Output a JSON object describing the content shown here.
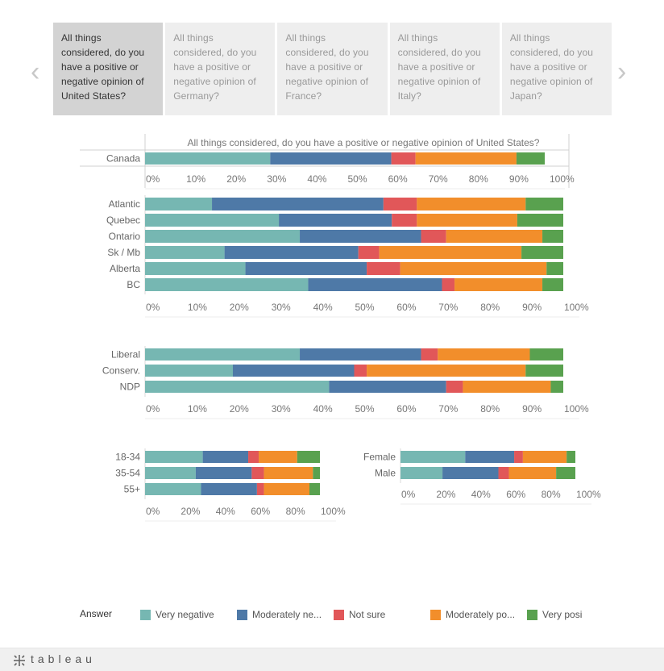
{
  "tabs": [
    "All things considered, do you have a positive or negative opinion of United States?",
    "All things considered, do you have a positive or negative opinion of Germany?",
    "All things considered, do you have a positive or negative opinion of France?",
    "All things considered, do you have a positive or negative opinion of Italy?",
    "All things considered, do you have a positive or negative opinion of Japan?"
  ],
  "nav": {
    "prev": "‹",
    "next": "›"
  },
  "colors": {
    "Very negative": "#76b7b2",
    "Moderately negative": "#4e79a7",
    "Not sure": "#e15759",
    "Moderately positive": "#f28e2b",
    "Very positive": "#59a14f"
  },
  "chart_data": [
    {
      "type": "bar",
      "stacked": "horizontal-100",
      "title": "All things considered, do you have a positive or negative opinion of United States?",
      "categories": [
        "Canada"
      ],
      "series": [
        {
          "name": "Very negative",
          "values": [
            31
          ]
        },
        {
          "name": "Moderately negative",
          "values": [
            30
          ]
        },
        {
          "name": "Not sure",
          "values": [
            6
          ]
        },
        {
          "name": "Moderately positive",
          "values": [
            25
          ]
        },
        {
          "name": "Very positive",
          "values": [
            7
          ]
        }
      ],
      "ticks": [
        "0%",
        "10%",
        "20%",
        "30%",
        "40%",
        "50%",
        "60%",
        "70%",
        "80%",
        "90%",
        "100%"
      ],
      "xlim": [
        0,
        100
      ]
    },
    {
      "type": "bar",
      "stacked": "horizontal-100",
      "categories": [
        "Atlantic",
        "Quebec",
        "Ontario",
        "Sk / Mb",
        "Alberta",
        "BC"
      ],
      "series": [
        {
          "name": "Very negative",
          "values": [
            16,
            32,
            37,
            19,
            24,
            39
          ]
        },
        {
          "name": "Moderately negative",
          "values": [
            41,
            27,
            29,
            32,
            29,
            32
          ]
        },
        {
          "name": "Not sure",
          "values": [
            8,
            6,
            6,
            5,
            8,
            3
          ]
        },
        {
          "name": "Moderately positive",
          "values": [
            26,
            24,
            23,
            34,
            35,
            21
          ]
        },
        {
          "name": "Very positive",
          "values": [
            9,
            11,
            5,
            10,
            4,
            5
          ]
        }
      ],
      "ticks": [
        "0%",
        "10%",
        "20%",
        "30%",
        "40%",
        "50%",
        "60%",
        "70%",
        "80%",
        "90%",
        "100%"
      ],
      "xlim": [
        0,
        100
      ]
    },
    {
      "type": "bar",
      "stacked": "horizontal-100",
      "categories": [
        "Liberal",
        "Conserv.",
        "NDP"
      ],
      "series": [
        {
          "name": "Very negative",
          "values": [
            37,
            21,
            44
          ]
        },
        {
          "name": "Moderately negative",
          "values": [
            29,
            29,
            28
          ]
        },
        {
          "name": "Not sure",
          "values": [
            4,
            3,
            4
          ]
        },
        {
          "name": "Moderately positive",
          "values": [
            22,
            38,
            21
          ]
        },
        {
          "name": "Very positive",
          "values": [
            8,
            9,
            3
          ]
        }
      ],
      "ticks": [
        "0%",
        "10%",
        "20%",
        "30%",
        "40%",
        "50%",
        "60%",
        "70%",
        "80%",
        "90%",
        "100%"
      ],
      "xlim": [
        0,
        100
      ]
    },
    {
      "type": "bar",
      "stacked": "horizontal-100",
      "categories": [
        "18-34",
        "35-54",
        "55+"
      ],
      "series": [
        {
          "name": "Very negative",
          "values": [
            33,
            29,
            32
          ]
        },
        {
          "name": "Moderately negative",
          "values": [
            26,
            32,
            32
          ]
        },
        {
          "name": "Not sure",
          "values": [
            6,
            7,
            4
          ]
        },
        {
          "name": "Moderately positive",
          "values": [
            22,
            28,
            26
          ]
        },
        {
          "name": "Very positive",
          "values": [
            13,
            4,
            6
          ]
        }
      ],
      "ticks": [
        "0%",
        "20%",
        "40%",
        "60%",
        "80%",
        "100%"
      ],
      "xlim": [
        0,
        100
      ]
    },
    {
      "type": "bar",
      "stacked": "horizontal-100",
      "categories": [
        "Female",
        "Male"
      ],
      "series": [
        {
          "name": "Very negative",
          "values": [
            37,
            24
          ]
        },
        {
          "name": "Moderately negative",
          "values": [
            28,
            32
          ]
        },
        {
          "name": "Not sure",
          "values": [
            5,
            6
          ]
        },
        {
          "name": "Moderately positive",
          "values": [
            25,
            27
          ]
        },
        {
          "name": "Very positive",
          "values": [
            5,
            11
          ]
        }
      ],
      "ticks": [
        "0%",
        "20%",
        "40%",
        "60%",
        "80%",
        "100%"
      ],
      "xlim": [
        0,
        100
      ]
    }
  ],
  "legend": {
    "title": "Answer",
    "items": [
      {
        "label": "Very negative",
        "key": "Very negative"
      },
      {
        "label": "Moderately ne...",
        "key": "Moderately negative"
      },
      {
        "label": "Not sure",
        "key": "Not sure"
      },
      {
        "label": "Moderately po...",
        "key": "Moderately positive"
      },
      {
        "label": "Very posi",
        "key": "Very positive"
      }
    ]
  },
  "footer": {
    "logo": "+tableau",
    "logo_text": "tableau"
  }
}
